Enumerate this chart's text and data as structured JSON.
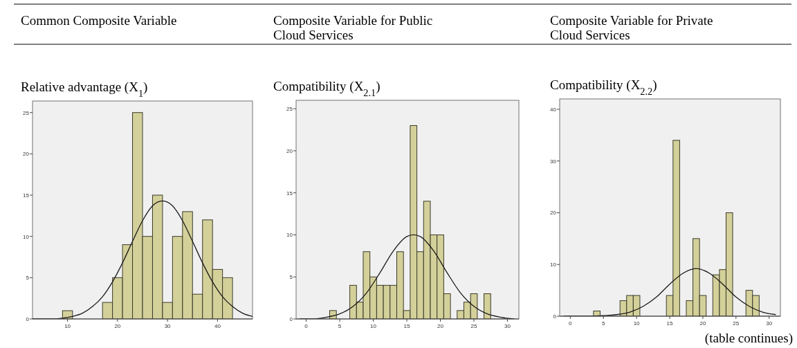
{
  "chart_data": [
    {
      "type": "histogram",
      "title": "Relative advantage (X$_{1}$)",
      "annotations": [
        "Common Composite Variable"
      ],
      "bins": [
        9,
        11,
        13,
        15,
        17,
        19,
        21,
        23,
        25,
        27,
        29,
        31,
        33,
        35,
        37,
        39,
        41,
        43
      ],
      "values": [
        1,
        0,
        0,
        0,
        2,
        5,
        9,
        25,
        10,
        15,
        2,
        10,
        13,
        3,
        12,
        6,
        5
      ],
      "color": "#d4d09a",
      "xlim": [
        3,
        47
      ],
      "xticks": [
        10,
        20,
        30,
        40
      ],
      "ylim": [
        0,
        26.4
      ],
      "yticks": [
        0,
        5,
        10,
        15,
        20,
        25
      ],
      "series": [
        {
          "type": "line",
          "color": "#1a1a1a",
          "x": [
            3,
            5,
            7,
            9,
            11,
            13,
            15,
            17,
            19,
            21,
            23,
            25,
            27,
            29,
            31,
            33,
            35,
            37,
            39,
            41,
            43,
            45,
            47
          ],
          "values": [
            0,
            0,
            0,
            0.1,
            0.3,
            0.7,
            1.5,
            2.7,
            4.5,
            6.8,
            9.4,
            11.9,
            13.7,
            14.3,
            13.7,
            11.9,
            9.4,
            6.8,
            4.5,
            2.7,
            1.5,
            0.7,
            0.3
          ]
        }
      ]
    },
    {
      "type": "histogram",
      "title": "Compatibility (X$_{2.1}$)",
      "annotations": [
        "Composite Variable for Public Cloud Services"
      ],
      "bins": [
        3.5,
        4.5,
        5.5,
        6.5,
        7.5,
        8.5,
        9.5,
        10.5,
        11.5,
        12.5,
        13.5,
        14.5,
        15.5,
        16.5,
        17.5,
        18.5,
        19.5,
        20.5,
        21.5,
        22.5,
        23.5,
        24.5,
        25.5,
        26.5,
        27.5
      ],
      "values": [
        1,
        0,
        0,
        4,
        2,
        8,
        5,
        4,
        4,
        4,
        8,
        1,
        23,
        8,
        14,
        10,
        10,
        3,
        0,
        1,
        2,
        3,
        0,
        3
      ],
      "color": "#d4d09a",
      "xlim": [
        -1.5,
        31.7
      ],
      "xticks": [
        0,
        5,
        10,
        15,
        20,
        25,
        30
      ],
      "ylim": [
        0,
        26
      ],
      "yticks": [
        0,
        5,
        10,
        15,
        20,
        25
      ],
      "series": [
        {
          "type": "line",
          "color": "#1a1a1a",
          "x": [
            -1,
            1,
            3,
            5,
            7,
            9,
            11,
            13,
            15,
            16,
            17,
            19,
            21,
            23,
            25,
            27,
            29,
            31
          ],
          "values": [
            0,
            0,
            0.2,
            0.6,
            1.5,
            3.1,
            5.5,
            8.1,
            9.8,
            10,
            9.8,
            8.1,
            5.5,
            3.1,
            1.5,
            0.6,
            0.2,
            0
          ]
        }
      ]
    },
    {
      "type": "histogram",
      "title": "Compatibility (X$_{2.2}$)",
      "annotations": [
        "Composite Variable for Private Cloud Services",
        "(table continues)"
      ],
      "bins": [
        3.5,
        4.5,
        5.5,
        6.5,
        7.5,
        8.5,
        9.5,
        10.5,
        11.5,
        12.5,
        13.5,
        14.5,
        15.5,
        16.5,
        17.5,
        18.5,
        19.5,
        20.5,
        21.5,
        22.5,
        23.5,
        24.5,
        25.5,
        26.5,
        27.5,
        28.5
      ],
      "values": [
        1,
        0,
        0,
        0,
        3,
        4,
        4,
        0,
        0,
        0,
        0,
        4,
        34,
        0,
        3,
        15,
        4,
        0,
        8,
        9,
        20,
        0,
        0,
        5,
        4
      ],
      "color": "#d4d09a",
      "xlim": [
        -1.6,
        31.7
      ],
      "xticks": [
        0,
        5,
        10,
        15,
        20,
        25,
        30
      ],
      "ylim": [
        0,
        42
      ],
      "yticks": [
        0,
        10,
        20,
        30,
        40
      ],
      "series": [
        {
          "type": "line",
          "color": "#1a1a1a",
          "x": [
            -1,
            1,
            3,
            5,
            7,
            9,
            11,
            13,
            15,
            17,
            19,
            21,
            23,
            25,
            27,
            29,
            31
          ],
          "values": [
            0,
            0,
            0,
            0.1,
            0.3,
            0.8,
            1.9,
            3.7,
            6.2,
            8.3,
            9.2,
            8.3,
            6.2,
            3.7,
            1.9,
            0.8,
            0.3
          ]
        }
      ]
    }
  ]
}
